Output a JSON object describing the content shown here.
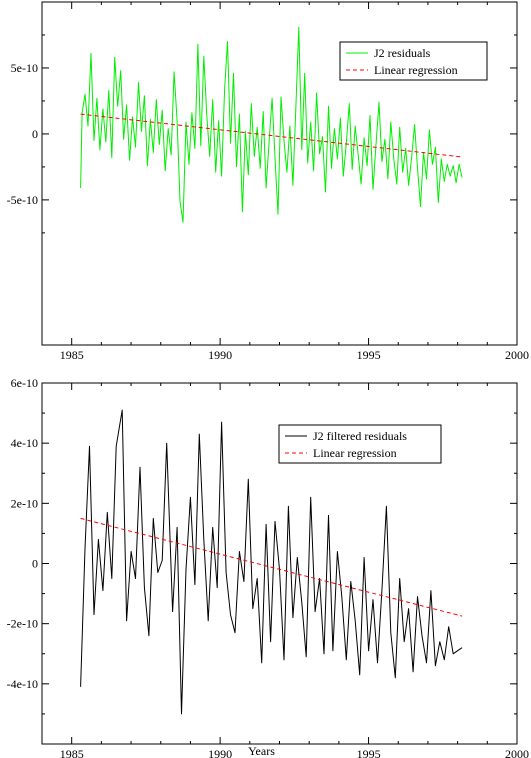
{
  "chart_data": [
    {
      "type": "line",
      "title": "",
      "xlabel": "",
      "ylabel": "",
      "xlim": [
        1984,
        2000
      ],
      "ylim": [
        -1.6e-09,
        1e-09
      ],
      "x_ticks": [
        1985,
        1990,
        1995,
        2000
      ],
      "x_tick_labels": [
        "1985",
        "1990",
        "1995",
        "2000"
      ],
      "y_ticks": [
        -5e-10,
        0,
        5e-10
      ],
      "y_tick_labels": [
        "-5e-10",
        "0",
        "5e-10"
      ],
      "grid": false,
      "legend_position": "top-right",
      "series": [
        {
          "name": "J2 residuals",
          "color": "#00ee00",
          "style": "solid",
          "x": [
            1985.3,
            1985.35,
            1985.45,
            1985.55,
            1985.65,
            1985.75,
            1985.85,
            1985.95,
            1986.05,
            1986.15,
            1986.25,
            1986.35,
            1986.45,
            1986.55,
            1986.65,
            1986.75,
            1986.85,
            1986.95,
            1987.05,
            1987.15,
            1987.25,
            1987.35,
            1987.45,
            1987.55,
            1987.65,
            1987.75,
            1987.85,
            1987.95,
            1988.05,
            1988.15,
            1988.25,
            1988.35,
            1988.45,
            1988.55,
            1988.65,
            1988.75,
            1988.85,
            1988.95,
            1989.05,
            1989.15,
            1989.25,
            1989.35,
            1989.45,
            1989.55,
            1989.65,
            1989.75,
            1989.85,
            1989.95,
            1990.05,
            1990.15,
            1990.25,
            1990.35,
            1990.45,
            1990.55,
            1990.65,
            1990.75,
            1990.85,
            1990.95,
            1991.05,
            1991.15,
            1991.25,
            1991.35,
            1991.45,
            1991.55,
            1991.65,
            1991.75,
            1991.85,
            1991.95,
            1992.05,
            1992.15,
            1992.25,
            1992.35,
            1992.45,
            1992.55,
            1992.65,
            1992.75,
            1992.85,
            1992.95,
            1993.05,
            1993.15,
            1993.25,
            1993.35,
            1993.45,
            1993.55,
            1993.65,
            1993.75,
            1993.85,
            1993.95,
            1994.05,
            1994.15,
            1994.25,
            1994.35,
            1994.45,
            1994.55,
            1994.65,
            1994.75,
            1994.85,
            1994.95,
            1995.05,
            1995.15,
            1995.25,
            1995.35,
            1995.45,
            1995.55,
            1995.65,
            1995.75,
            1995.85,
            1995.95,
            1996.05,
            1996.15,
            1996.25,
            1996.35,
            1996.45,
            1996.55,
            1996.65,
            1996.75,
            1996.85,
            1996.95,
            1997.05,
            1997.15,
            1997.25,
            1997.35,
            1997.45,
            1997.55,
            1997.65,
            1997.75,
            1997.85,
            1997.95,
            1998.05,
            1998.15
          ],
          "values": [
            -4.1e-10,
            1.6e-10,
            3e-10,
            6e-11,
            6.1e-10,
            -5e-11,
            2.7e-10,
            -1.2e-10,
            1.9e-10,
            -6e-11,
            3.3e-10,
            -1.8e-10,
            5.8e-10,
            2.1e-10,
            4.8e-10,
            -4e-11,
            2.2e-10,
            -2e-10,
            1.3e-10,
            -1e-10,
            3.9e-10,
            2e-11,
            2.9e-10,
            -2.4e-10,
            1.1e-10,
            -1.4e-10,
            2.6e-10,
            -8e-11,
            1.8e-10,
            -2.8e-10,
            4e-11,
            -1.6e-10,
            4.7e-10,
            1e-10,
            -5.1e-10,
            -6.7e-10,
            9e-11,
            -2.3e-10,
            1.6e-10,
            -1.1e-10,
            6.8e-10,
            -9e-11,
            5.9e-10,
            1.4e-10,
            -1.7e-10,
            2.6e-10,
            -2.9e-10,
            1e-10,
            -3.2e-10,
            3.4e-10,
            7e-10,
            -7e-11,
            4.6e-10,
            -2.5e-10,
            1.5e-10,
            -5.9e-10,
            2e-11,
            -3.1e-10,
            2.3e-10,
            -1.7e-10,
            5e-11,
            -2.6e-10,
            1.7e-10,
            -4.1e-10,
            -6e-11,
            2.7e-10,
            -1.8e-10,
            -6.1e-10,
            2.8e-10,
            -5e-11,
            -2.9e-10,
            6e-11,
            -3.9e-10,
            1.9e-10,
            8.1e-10,
            -1.2e-10,
            4.6e-10,
            -2.2e-10,
            9e-11,
            -2.8e-10,
            3.1e-10,
            -1.5e-10,
            -2e-11,
            -4.4e-10,
            2.1e-10,
            -2.6e-10,
            4e-11,
            -1.9e-10,
            1.2e-10,
            -3.2e-10,
            -7e-11,
            2.3e-10,
            -2.7e-10,
            6e-11,
            -1.6e-10,
            -3.8e-10,
            -3e-11,
            -2.4e-10,
            1.4e-10,
            -4.2e-10,
            -8e-11,
            2.4e-10,
            -2.1e-10,
            -4e-11,
            -3.4e-10,
            9e-11,
            -1.9e-10,
            -3.8e-10,
            5e-11,
            -2.9e-10,
            -1.1e-10,
            -3.9e-10,
            -1.8e-10,
            7e-11,
            -2.6e-10,
            -5.5e-10,
            -1.4e-10,
            -3.4e-10,
            3e-11,
            -2.3e-10,
            -1e-10,
            -5.2e-10,
            -1.9e-10,
            -3.6e-10,
            -2.3e-10,
            -3.2e-10,
            -2.4e-10,
            -3.7e-10,
            -2.3e-10,
            -3.3e-10
          ]
        },
        {
          "name": "Linear regression",
          "color": "#ff0000",
          "style": "dashed",
          "x": [
            1985.3,
            1998.15
          ],
          "values": [
            1.5e-10,
            -1.75e-10
          ]
        }
      ]
    },
    {
      "type": "line",
      "title": "",
      "xlabel": "Years",
      "ylabel": "",
      "xlim": [
        1984,
        2000
      ],
      "ylim": [
        -6e-10,
        6e-10
      ],
      "x_ticks": [
        1985,
        1990,
        1995,
        2000
      ],
      "x_tick_labels": [
        "1985",
        "1990",
        "1995",
        "2000"
      ],
      "y_ticks": [
        -4e-10,
        -2e-10,
        0,
        2e-10,
        4e-10,
        6e-10
      ],
      "y_tick_labels": [
        "-4e-10",
        "-2e-10",
        "0",
        "2e-10",
        "4e-10",
        "6e-10"
      ],
      "grid": false,
      "legend_position": "top-right",
      "series": [
        {
          "name": "J2 filtered residuals",
          "color": "#000000",
          "style": "solid",
          "x": [
            1985.3,
            1985.45,
            1985.6,
            1985.75,
            1985.9,
            1986.05,
            1986.2,
            1986.35,
            1986.5,
            1986.7,
            1986.85,
            1987.0,
            1987.15,
            1987.3,
            1987.45,
            1987.6,
            1987.75,
            1987.9,
            1988.05,
            1988.2,
            1988.4,
            1988.55,
            1988.7,
            1988.85,
            1989.0,
            1989.15,
            1989.3,
            1989.45,
            1989.6,
            1989.75,
            1989.9,
            1990.05,
            1990.2,
            1990.35,
            1990.5,
            1990.65,
            1990.8,
            1990.95,
            1991.1,
            1991.25,
            1991.4,
            1991.55,
            1991.7,
            1991.85,
            1992.0,
            1992.15,
            1992.3,
            1992.45,
            1992.6,
            1992.75,
            1992.9,
            1993.05,
            1993.2,
            1993.35,
            1993.5,
            1993.65,
            1993.8,
            1993.95,
            1994.1,
            1994.25,
            1994.4,
            1994.55,
            1994.7,
            1994.85,
            1995.0,
            1995.15,
            1995.3,
            1995.45,
            1995.6,
            1995.75,
            1995.9,
            1996.05,
            1996.2,
            1996.35,
            1996.5,
            1996.65,
            1996.8,
            1996.95,
            1997.1,
            1997.25,
            1997.4,
            1997.55,
            1997.7,
            1997.85,
            1998.0,
            1998.15
          ],
          "values": [
            -4.1e-10,
            5e-11,
            3.9e-10,
            -1.7e-10,
            8e-11,
            -9e-11,
            1.7e-10,
            -5e-11,
            3.9e-10,
            5.1e-10,
            -1.9e-10,
            4e-11,
            -5e-11,
            3.2e-10,
            -8e-11,
            -2.4e-10,
            1.5e-10,
            -3e-11,
            1e-11,
            4e-10,
            -1.6e-10,
            1.2e-10,
            -5e-10,
            -2e-11,
            2.2e-10,
            -7e-11,
            4.3e-10,
            8e-11,
            -1.9e-10,
            1.2e-10,
            -8e-11,
            4.7e-10,
            -3e-11,
            -1.7e-10,
            -2.3e-10,
            4e-11,
            -6e-11,
            2.8e-10,
            -1.5e-10,
            -5e-11,
            -3.3e-10,
            1.3e-10,
            -2.6e-10,
            1.4e-10,
            -2e-11,
            -3.2e-10,
            1.9e-10,
            -1.8e-10,
            2e-11,
            -1.3e-10,
            -3.1e-10,
            2.2e-10,
            -1.6e-10,
            -5e-11,
            -3e-10,
            1.6e-10,
            -2.9e-10,
            4e-11,
            -1.1e-10,
            -3.2e-10,
            -6e-11,
            -1.9e-10,
            -3.7e-10,
            2e-11,
            -2.9e-10,
            -1.2e-10,
            -3.3e-10,
            -9e-11,
            1.9e-10,
            -2.3e-10,
            -3.8e-10,
            -5e-11,
            -2.6e-10,
            -1.5e-10,
            -3.6e-10,
            -1.1e-10,
            -2.4e-10,
            -3.3e-10,
            -9e-11,
            -3.4e-10,
            -2.6e-10,
            -3.2e-10,
            -2.1e-10,
            -3e-10,
            -2.9e-10,
            -2.8e-10
          ]
        },
        {
          "name": "Linear regression",
          "color": "#ff0000",
          "style": "dashed",
          "x": [
            1985.3,
            1998.15
          ],
          "values": [
            1.5e-10,
            -1.75e-10
          ]
        }
      ]
    }
  ]
}
